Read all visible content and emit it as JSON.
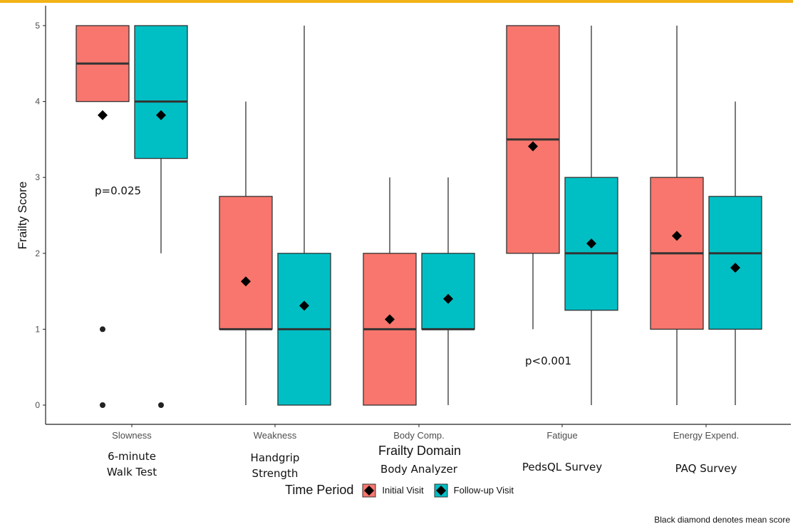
{
  "accent": "#F2B318",
  "chart_data": {
    "type": "boxplot",
    "title": "",
    "xlabel": "Frailty Domain",
    "ylabel": "Frailty Score",
    "ylim": [
      0,
      5
    ],
    "yticks": [
      0,
      1,
      2,
      3,
      4,
      5
    ],
    "grid": false,
    "categories": [
      "Slowness",
      "Weakness",
      "Body Comp.",
      "Fatigue",
      "Energy Expend."
    ],
    "subtitles": [
      [
        "6-minute",
        "Walk Test"
      ],
      [
        "Handgrip",
        "Strength"
      ],
      [
        "Body Analyzer"
      ],
      [
        "PedsQL Survey"
      ],
      [
        "PAQ Survey"
      ]
    ],
    "legend_title": "Time Period",
    "legend_position": "bottom",
    "series": [
      {
        "name": "Initial Visit",
        "color": "#F8766D",
        "boxes": [
          {
            "min": 4,
            "q1": 4,
            "median": 4.5,
            "q3": 5,
            "max": 5,
            "mean": 3.82,
            "outliers": [
              1,
              0
            ]
          },
          {
            "min": 0,
            "q1": 1,
            "median": 1,
            "q3": 2.75,
            "max": 4,
            "mean": 1.63,
            "outliers": []
          },
          {
            "min": 0,
            "q1": 0,
            "median": 1,
            "q3": 2,
            "max": 3,
            "mean": 1.13,
            "outliers": []
          },
          {
            "min": 1,
            "q1": 2,
            "median": 3.5,
            "q3": 5,
            "max": 5,
            "mean": 3.41,
            "outliers": []
          },
          {
            "min": 0,
            "q1": 1,
            "median": 2,
            "q3": 3,
            "max": 5,
            "mean": 2.23,
            "outliers": []
          }
        ]
      },
      {
        "name": "Follow-up Visit",
        "color": "#00BFC4",
        "boxes": [
          {
            "min": 2,
            "q1": 3.25,
            "median": 4,
            "q3": 5,
            "max": 5,
            "mean": 3.82,
            "outliers": [
              0
            ]
          },
          {
            "min": 0,
            "q1": 0,
            "median": 1,
            "q3": 2,
            "max": 5,
            "mean": 1.31,
            "outliers": []
          },
          {
            "min": 0,
            "q1": 1,
            "median": 1,
            "q3": 2,
            "max": 3,
            "mean": 1.4,
            "outliers": []
          },
          {
            "min": 0,
            "q1": 1.25,
            "median": 2,
            "q3": 3,
            "max": 5,
            "mean": 2.13,
            "outliers": []
          },
          {
            "min": 0,
            "q1": 1,
            "median": 2,
            "q3": 2.75,
            "max": 4,
            "mean": 1.81,
            "outliers": []
          }
        ]
      }
    ],
    "annotations": [
      {
        "text": "p=0.025",
        "category": 0,
        "y": 2.8
      },
      {
        "text": "p<0.001",
        "category": 3,
        "y": 0.55
      }
    ],
    "footnote": "Black diamond denotes mean score"
  }
}
